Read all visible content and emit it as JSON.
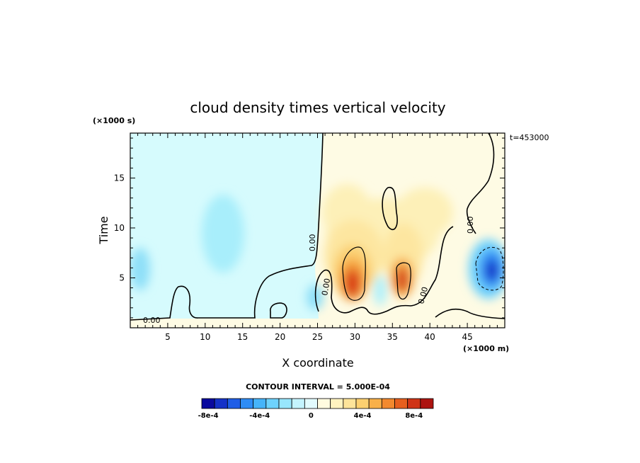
{
  "chart_data": {
    "type": "heatmap",
    "title": "cloud density times vertical velocity",
    "xlabel": "X coordinate",
    "ylabel": "Time",
    "x_unit_label": "(×1000 m)",
    "y_unit_label": "(×1000 s)",
    "time_stamp": "t=453000",
    "xlim": [
      0,
      50
    ],
    "ylim": [
      0,
      19.5
    ],
    "x_ticks": [
      5,
      10,
      15,
      20,
      25,
      30,
      35,
      40,
      45
    ],
    "y_ticks": [
      5,
      10,
      15
    ],
    "contour_interval_label": "CONTOUR INTERVAL = 5.000E-04",
    "contour_interval": 0.0005,
    "zero_contour_label": "0.00",
    "colorbar": {
      "levels": [
        -0.0008,
        -0.0007,
        -0.0006,
        -0.0005,
        -0.0004,
        -0.0003,
        -0.0002,
        -0.0001,
        0,
        0.0001,
        0.0002,
        0.0003,
        0.0004,
        0.0005,
        0.0006,
        0.0007,
        0.0008,
        0.0009
      ],
      "tick_labels": [
        "-8e-4",
        "-4e-4",
        "0",
        "4e-4",
        "8e-4"
      ],
      "tick_values": [
        -0.0008,
        -0.0004,
        0,
        0.0004,
        0.0008
      ],
      "colors": [
        "#0a0a9e",
        "#1532c8",
        "#1f5ee6",
        "#2e8cf5",
        "#46b4fa",
        "#6ed2fc",
        "#98e6fd",
        "#c4f4fe",
        "#e2fbfe",
        "#fffbe0",
        "#fff3c0",
        "#fde49a",
        "#fcd070",
        "#f8b049",
        "#f2892e",
        "#e65f1e",
        "#cf3416",
        "#ad1410"
      ]
    },
    "features": [
      {
        "x": 29.5,
        "y": 4.5,
        "value": 0.0009,
        "kind": "updraft"
      },
      {
        "x": 36.2,
        "y": 4.8,
        "value": 0.0008,
        "kind": "updraft"
      },
      {
        "x": 48.0,
        "y": 6.0,
        "value": -0.0009,
        "kind": "downdraft"
      },
      {
        "x": 12.0,
        "y": 9.0,
        "value": -0.0002,
        "kind": "weak-negative"
      },
      {
        "x": 1.0,
        "y": 6.0,
        "value": -0.0003,
        "kind": "weak-negative"
      }
    ]
  }
}
